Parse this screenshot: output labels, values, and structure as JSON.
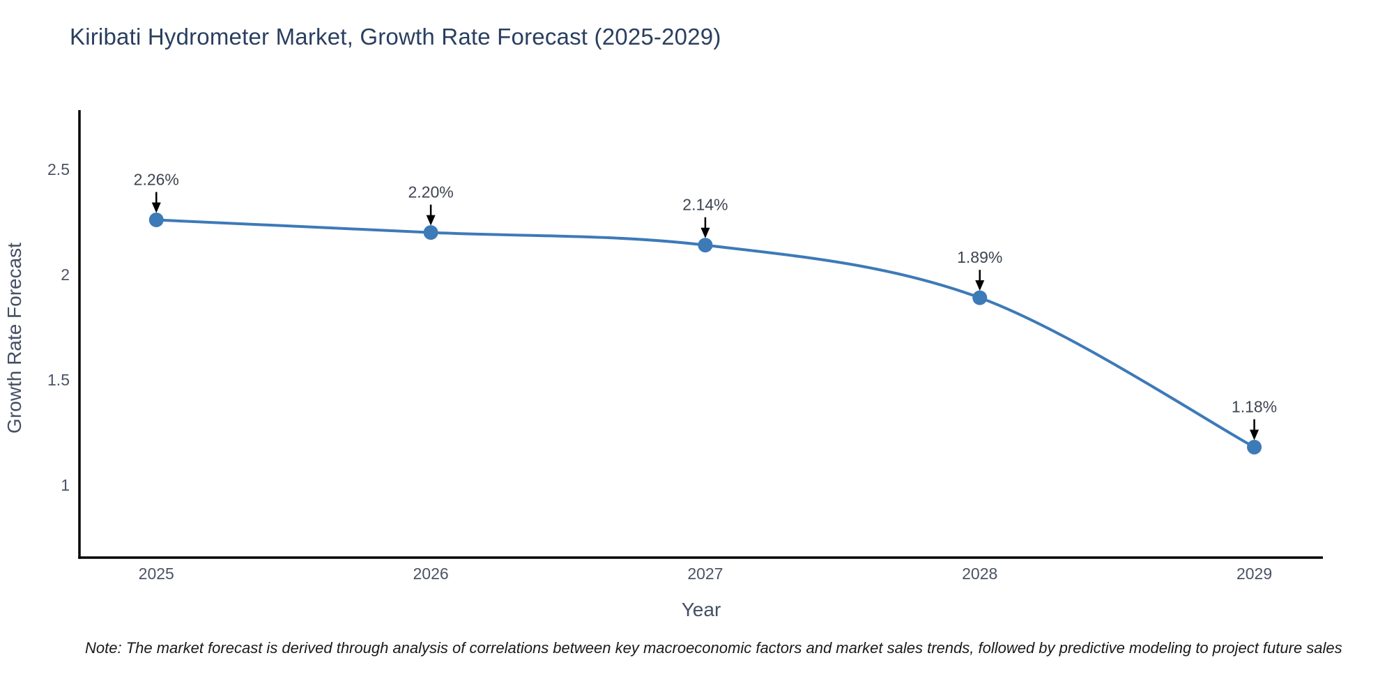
{
  "header": {
    "title": "Kiribati Hydrometer Market, Growth Rate Forecast (2025-2029)"
  },
  "footnote": {
    "text": "Note: The market forecast is derived through analysis of correlations between key macroeconomic factors and market sales trends, followed by predictive modeling to project future sales"
  },
  "chart_data": {
    "type": "line",
    "title": "Kiribati Hydrometer Market, Growth Rate Forecast (2025-2029)",
    "xlabel": "Year",
    "ylabel": "Growth Rate Forecast",
    "x": [
      2025,
      2026,
      2027,
      2028,
      2029
    ],
    "series": [
      {
        "name": "Growth Rate Forecast",
        "values": [
          2.26,
          2.2,
          2.14,
          1.89,
          1.18
        ]
      }
    ],
    "point_labels": [
      "2.26%",
      "2.20%",
      "2.14%",
      "1.89%",
      "1.18%"
    ],
    "xtick_labels": [
      "2025",
      "2026",
      "2027",
      "2028",
      "2029"
    ],
    "yticks": [
      1,
      1.5,
      2,
      2.5
    ],
    "ytick_labels": [
      "1",
      "1.5",
      "2",
      "2.5"
    ],
    "xlim": [
      2024.72,
      2029.25
    ],
    "ylim": [
      0.655,
      2.775
    ],
    "grid": false,
    "legend": "none",
    "line_shape": "spline",
    "annotation_style": "text above point with black down-arrow",
    "colors": {
      "line": "#3d7ab8",
      "marker": "#3d7ab8",
      "axis": "#000000",
      "arrow": "#000000",
      "tick_label": "#4a5366",
      "annotation_text": "#3d4450",
      "title": "#2a3f5f",
      "axis_label": "#444f63",
      "note": "#1a1a1a"
    }
  }
}
